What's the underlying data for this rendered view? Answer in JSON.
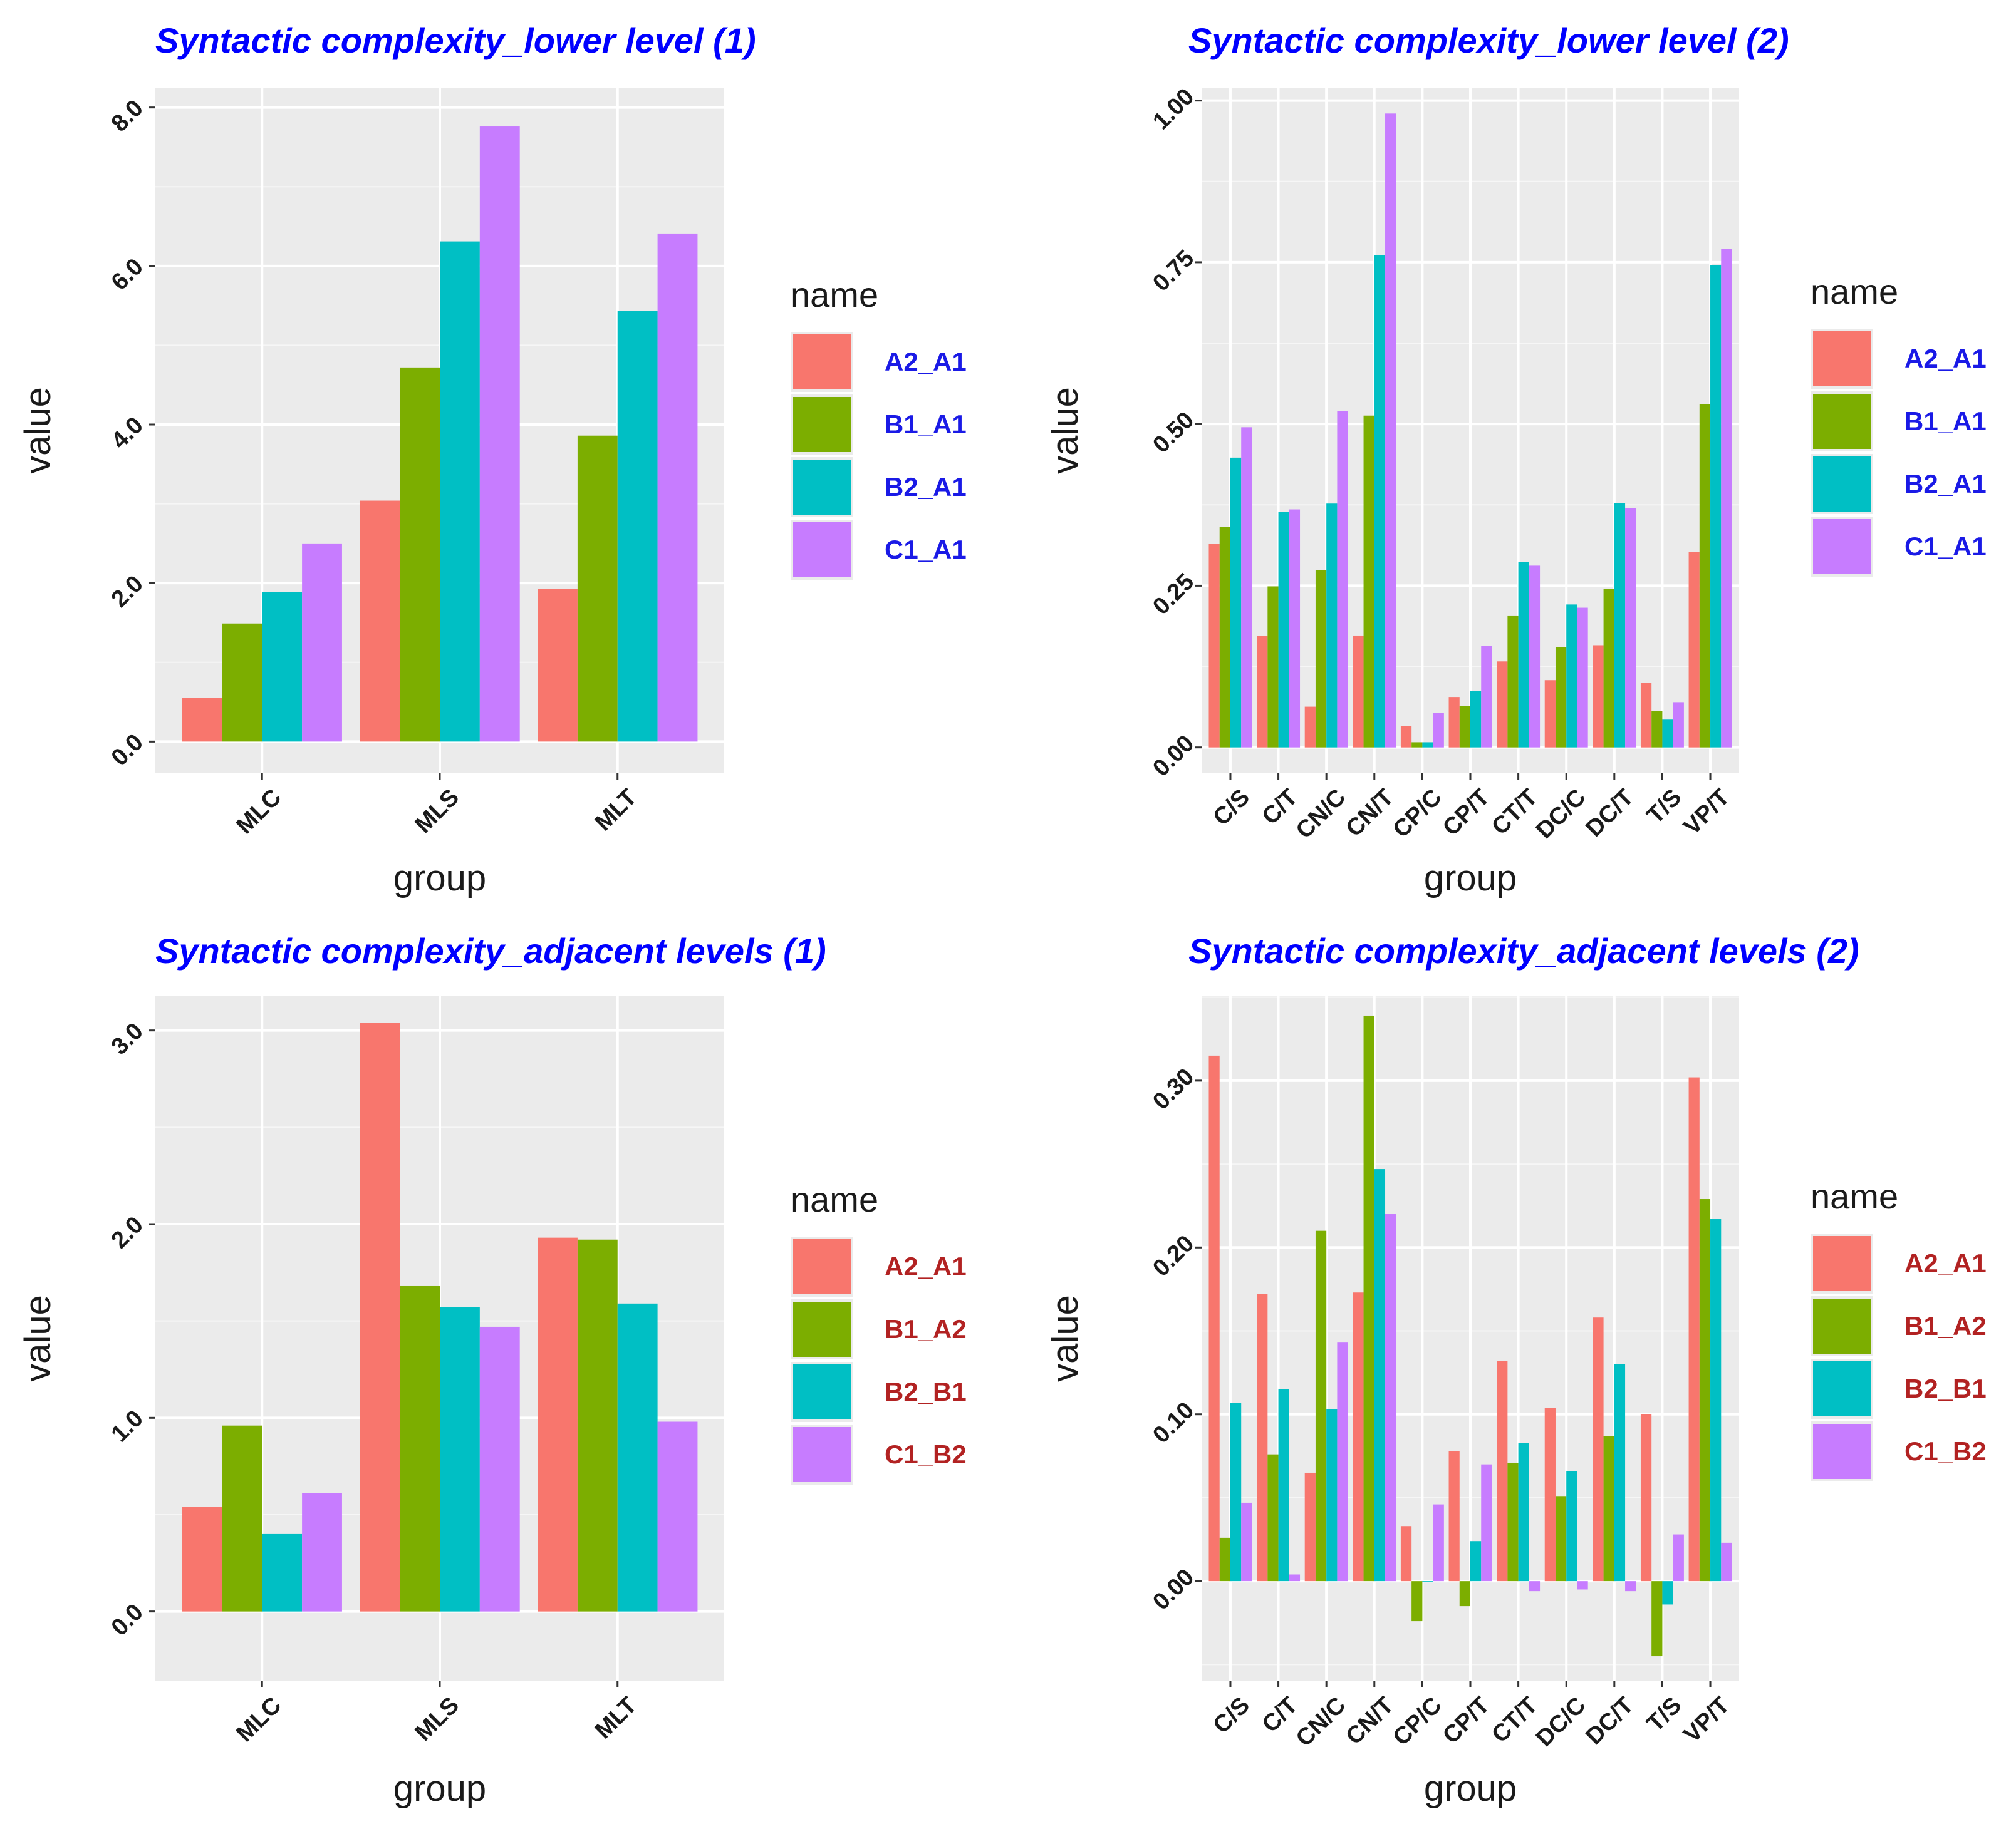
{
  "colors": {
    "series": [
      "#F8766D",
      "#7CAE00",
      "#00BFC4",
      "#C77CFF"
    ],
    "title_blue": "#0000FF",
    "legend_blue": "#1a1ae6",
    "legend_red": "#B22222",
    "panel_bg": "#EBEBEB",
    "grid": "#FFFFFF"
  },
  "chart_data": [
    {
      "type": "bar",
      "title": "Syntactic complexity_lower level (1)",
      "xlabel": "group",
      "ylabel": "value",
      "ylim": [
        -0.4,
        8.25
      ],
      "yticks": [
        0,
        2,
        4,
        6,
        8
      ],
      "ytick_labels": [
        "0.0",
        "2.0",
        "4.0",
        "6.0",
        "8.0"
      ],
      "categories": [
        "MLC",
        "MLS",
        "MLT"
      ],
      "legend_title": "name",
      "legend_color": "blue",
      "series": [
        {
          "name": "A2_A1",
          "values": [
            0.55,
            3.04,
            1.93
          ]
        },
        {
          "name": "B1_A1",
          "values": [
            1.49,
            4.72,
            3.86
          ]
        },
        {
          "name": "B2_A1",
          "values": [
            1.89,
            6.31,
            5.43
          ]
        },
        {
          "name": "C1_A1",
          "values": [
            2.5,
            7.76,
            6.41
          ]
        }
      ]
    },
    {
      "type": "bar",
      "title": "Syntactic complexity_lower level (2)",
      "xlabel": "group",
      "ylabel": "value",
      "ylim": [
        -0.04,
        1.02
      ],
      "yticks": [
        0,
        0.25,
        0.5,
        0.75,
        1.0
      ],
      "ytick_labels": [
        "0.00",
        "0.25",
        "0.50",
        "0.75",
        "1.00"
      ],
      "categories": [
        "C/S",
        "C/T",
        "CN/C",
        "CN/T",
        "CP/C",
        "CP/T",
        "CT/T",
        "DC/C",
        "DC/T",
        "T/S",
        "VP/T"
      ],
      "legend_title": "name",
      "legend_color": "blue",
      "series": [
        {
          "name": "A2_A1",
          "values": [
            0.315,
            0.172,
            0.063,
            0.173,
            0.033,
            0.078,
            0.133,
            0.104,
            0.158,
            0.1,
            0.302
          ]
        },
        {
          "name": "B1_A1",
          "values": [
            0.341,
            0.249,
            0.274,
            0.513,
            0.008,
            0.064,
            0.204,
            0.155,
            0.245,
            0.056,
            0.531
          ]
        },
        {
          "name": "B2_A1",
          "values": [
            0.448,
            0.364,
            0.377,
            0.761,
            0.008,
            0.087,
            0.287,
            0.221,
            0.378,
            0.043,
            0.746
          ]
        },
        {
          "name": "C1_A1",
          "values": [
            0.495,
            0.368,
            0.52,
            0.98,
            0.053,
            0.157,
            0.281,
            0.216,
            0.37,
            0.07,
            0.771
          ]
        }
      ]
    },
    {
      "type": "bar",
      "title": "Syntactic complexity_adjacent levels (1)",
      "xlabel": "group",
      "ylabel": "value",
      "ylim": [
        -0.36,
        3.18
      ],
      "yticks": [
        0,
        1,
        2,
        3
      ],
      "ytick_labels": [
        "0.0",
        "1.0",
        "2.0",
        "3.0"
      ],
      "categories": [
        "MLC",
        "MLS",
        "MLT"
      ],
      "legend_title": "name",
      "legend_color": "red",
      "series": [
        {
          "name": "A2_A1",
          "values": [
            0.54,
            3.04,
            1.93
          ]
        },
        {
          "name": "B1_A2",
          "values": [
            0.96,
            1.68,
            1.92
          ]
        },
        {
          "name": "B2_B1",
          "values": [
            0.4,
            1.57,
            1.59
          ]
        },
        {
          "name": "C1_B2",
          "values": [
            0.61,
            1.47,
            0.98
          ]
        }
      ]
    },
    {
      "type": "bar",
      "title": "Syntactic complexity_adjacent levels (2)",
      "xlabel": "group",
      "ylabel": "value",
      "ylim": [
        -0.06,
        0.351
      ],
      "yticks": [
        0,
        0.1,
        0.2,
        0.3
      ],
      "ytick_labels": [
        "0.00",
        "0.10",
        "0.20",
        "0.30"
      ],
      "categories": [
        "C/S",
        "C/T",
        "CN/C",
        "CN/T",
        "CP/C",
        "CP/T",
        "CT/T",
        "DC/C",
        "DC/T",
        "T/S",
        "VP/T"
      ],
      "legend_title": "name",
      "legend_color": "red",
      "series": [
        {
          "name": "A2_A1",
          "values": [
            0.315,
            0.172,
            0.065,
            0.173,
            0.033,
            0.078,
            0.132,
            0.104,
            0.158,
            0.1,
            0.302
          ]
        },
        {
          "name": "B1_A2",
          "values": [
            0.026,
            0.076,
            0.21,
            0.339,
            -0.024,
            -0.015,
            0.071,
            0.051,
            0.087,
            -0.045,
            0.229
          ]
        },
        {
          "name": "B2_B1",
          "values": [
            0.107,
            0.115,
            0.103,
            0.247,
            0.0,
            0.024,
            0.083,
            0.066,
            0.13,
            -0.014,
            0.217
          ]
        },
        {
          "name": "C1_B2",
          "values": [
            0.047,
            0.004,
            0.143,
            0.22,
            0.046,
            0.07,
            -0.006,
            -0.005,
            -0.006,
            0.028,
            0.023
          ]
        }
      ]
    }
  ]
}
